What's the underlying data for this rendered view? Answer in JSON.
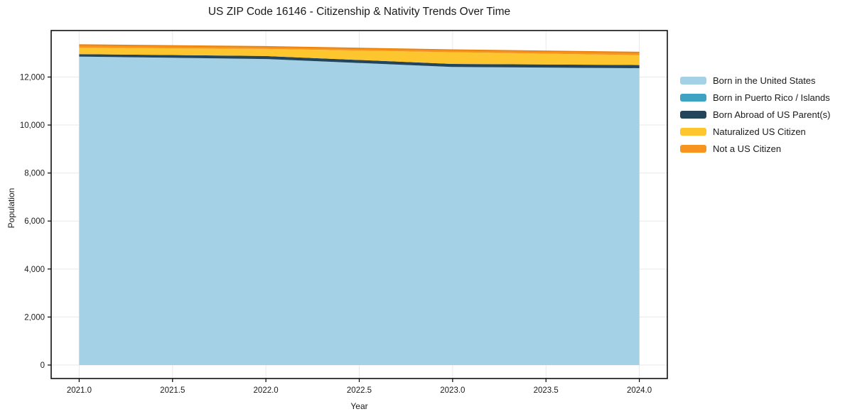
{
  "chart_data": {
    "type": "area",
    "stacked": true,
    "title": "US ZIP Code 16146 - Citizenship & Nativity Trends Over Time",
    "xlabel": "Year",
    "ylabel": "Population",
    "x": [
      2021,
      2022,
      2023,
      2024
    ],
    "series": [
      {
        "name": "Born in the United States",
        "color": "#a5d1e6",
        "values": [
          12850,
          12750,
          12420,
          12370
        ]
      },
      {
        "name": "Born in Puerto Rico / Islands",
        "color": "#3ea3c3",
        "values": [
          0,
          0,
          0,
          0
        ]
      },
      {
        "name": "Born Abroad of US Parent(s)",
        "color": "#23455c",
        "values": [
          105,
          125,
          125,
          130
        ]
      },
      {
        "name": "Naturalized US Citizen",
        "color": "#fdc52e",
        "values": [
          265,
          295,
          490,
          410
        ]
      },
      {
        "name": "Not a US Citizen",
        "color": "#f79420",
        "values": [
          120,
          95,
          95,
          120
        ]
      }
    ],
    "totals": [
      13340,
      13265,
      13130,
      13030
    ],
    "x_ticks": {
      "values": [
        2021.0,
        2021.5,
        2022.0,
        2022.5,
        2023.0,
        2023.5,
        2024.0
      ],
      "labels": [
        "2021.0",
        "2021.5",
        "2022.0",
        "2022.5",
        "2023.0",
        "2023.5",
        "2024.0"
      ]
    },
    "y_ticks": {
      "values": [
        0,
        2000,
        4000,
        6000,
        8000,
        10000,
        12000
      ],
      "labels": [
        "0",
        "2,000",
        "4,000",
        "6,000",
        "8,000",
        "10,000",
        "12,000"
      ]
    },
    "x_range": [
      2020.85,
      2024.15
    ],
    "y_range": [
      -562,
      13937
    ],
    "grid": true,
    "legend_position": "right-outside",
    "top_edge_color": "#e8820c"
  },
  "colors": {
    "grid": "#e9e9e9",
    "axis": "#000000",
    "text": "#1a1a1a",
    "background": "#ffffff"
  }
}
